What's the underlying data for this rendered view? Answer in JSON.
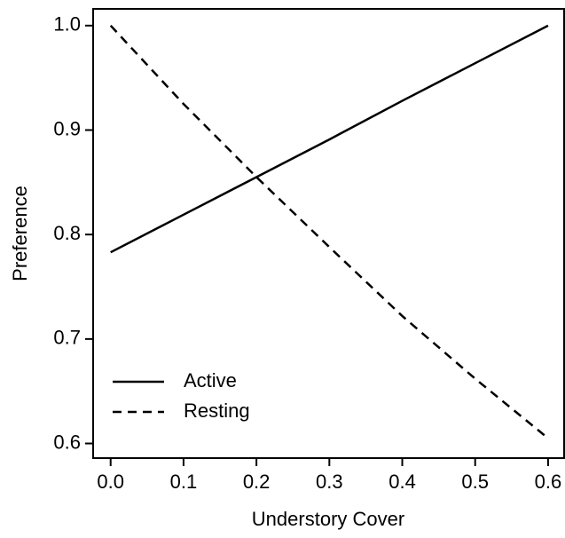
{
  "chart_data": {
    "type": "line",
    "x_label": "Understory Cover",
    "y_label": "Preference",
    "x": [
      0,
      0.1,
      0.2,
      0.3,
      0.4,
      0.5,
      0.6
    ],
    "series": [
      {
        "name": "Active",
        "color": "#000000",
        "line_style": "solid",
        "values": [
          0.783,
          0.819,
          0.855,
          0.891,
          0.928,
          0.964,
          1.0
        ]
      },
      {
        "name": "Resting",
        "color": "#000000",
        "line_style": "dashed",
        "values": [
          1.0,
          0.925,
          0.855,
          0.788,
          0.722,
          0.662,
          0.605
        ]
      }
    ],
    "xlim": [
      -0.024,
      0.622
    ],
    "ylim": [
      0.586,
      1.016
    ],
    "xticks": [
      {
        "value": 0,
        "label": "0.0"
      },
      0.1,
      0.2,
      0.3,
      0.4,
      0.5,
      0.6
    ],
    "yticks": [
      0.6,
      0.7,
      0.8,
      0.9,
      {
        "value": 1,
        "label": "1.0"
      }
    ],
    "legend": "lower left",
    "grid": false
  }
}
